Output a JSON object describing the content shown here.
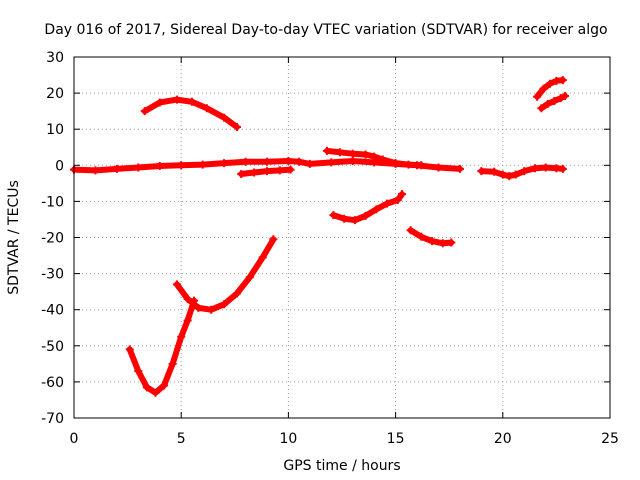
{
  "chart_data": {
    "type": "scatter",
    "title": "Day 016 of 2017, Sidereal Day-to-day VTEC variation (SDTVAR) for receiver algo",
    "xlabel": "GPS time / hours",
    "ylabel": "SDTVAR / TECUs",
    "xlim": [
      0,
      25
    ],
    "ylim": [
      -70,
      30
    ],
    "xticks": [
      0,
      5,
      10,
      15,
      20,
      25
    ],
    "yticks": [
      -70,
      -60,
      -50,
      -40,
      -30,
      -20,
      -10,
      0,
      10,
      20,
      30
    ],
    "grid": true,
    "legend": "none",
    "marker_color": "#ff0000",
    "tracks": [
      {
        "x": [
          0.0,
          1.0,
          2.0,
          3.0,
          4.0,
          5.0,
          6.0,
          7.0,
          8.0,
          9.0,
          10.0,
          10.5,
          11.0,
          12.0,
          13.0,
          14.0,
          15.0,
          16.0,
          17.0,
          18.0
        ],
        "y": [
          -1.2,
          -1.4,
          -1.0,
          -0.6,
          -0.2,
          0.0,
          0.2,
          0.6,
          1.0,
          1.0,
          1.2,
          1.0,
          0.4,
          0.8,
          1.2,
          0.8,
          0.4,
          0.0,
          -0.6,
          -1.0
        ]
      },
      {
        "x": [
          19.0,
          19.6,
          20.0,
          20.3,
          20.6,
          21.0,
          21.5,
          22.0,
          22.5,
          22.8
        ],
        "y": [
          -1.6,
          -1.8,
          -2.6,
          -3.0,
          -2.6,
          -1.6,
          -0.8,
          -0.6,
          -0.8,
          -1.0
        ]
      },
      {
        "x": [
          7.8,
          8.4,
          9.0,
          9.6,
          10.1
        ],
        "y": [
          -2.4,
          -2.0,
          -1.6,
          -1.4,
          -1.2
        ]
      },
      {
        "x": [
          11.8,
          12.4,
          13.0,
          13.6,
          14.0,
          14.4,
          15.0,
          15.6,
          16.2
        ],
        "y": [
          4.0,
          3.6,
          3.2,
          3.0,
          2.4,
          1.6,
          0.6,
          0.2,
          0.0
        ]
      },
      {
        "x": [
          3.3,
          4.0,
          4.8,
          5.5,
          6.2,
          7.0,
          7.6
        ],
        "y": [
          15.0,
          17.4,
          18.2,
          17.6,
          15.8,
          13.2,
          10.6
        ]
      },
      {
        "x": [
          21.6,
          21.9,
          22.2,
          22.5,
          22.8
        ],
        "y": [
          19.0,
          21.2,
          22.6,
          23.4,
          23.6
        ]
      },
      {
        "x": [
          21.8,
          22.1,
          22.4,
          22.7,
          22.9
        ],
        "y": [
          15.8,
          17.0,
          17.8,
          18.6,
          19.2
        ]
      },
      {
        "x": [
          12.1,
          12.6,
          13.1,
          13.6,
          14.1,
          14.6,
          15.1,
          15.3
        ],
        "y": [
          -13.8,
          -14.8,
          -15.2,
          -14.0,
          -12.2,
          -10.6,
          -9.6,
          -8.0
        ]
      },
      {
        "x": [
          15.7,
          16.2,
          16.7,
          17.2,
          17.6
        ],
        "y": [
          -18.0,
          -19.8,
          -21.0,
          -21.6,
          -21.4
        ]
      },
      {
        "x": [
          2.6,
          3.0,
          3.4,
          3.8,
          4.2,
          4.6,
          5.0,
          5.3,
          5.6
        ],
        "y": [
          -51.0,
          -57.0,
          -61.5,
          -63.0,
          -61.0,
          -55.0,
          -47.5,
          -43.0,
          -37.5
        ]
      },
      {
        "x": [
          4.8,
          5.3,
          5.8,
          6.4,
          7.0,
          7.6,
          8.2,
          8.8,
          9.3
        ],
        "y": [
          -33.0,
          -37.0,
          -39.5,
          -40.0,
          -38.5,
          -35.5,
          -31.0,
          -25.5,
          -20.5
        ]
      }
    ]
  }
}
